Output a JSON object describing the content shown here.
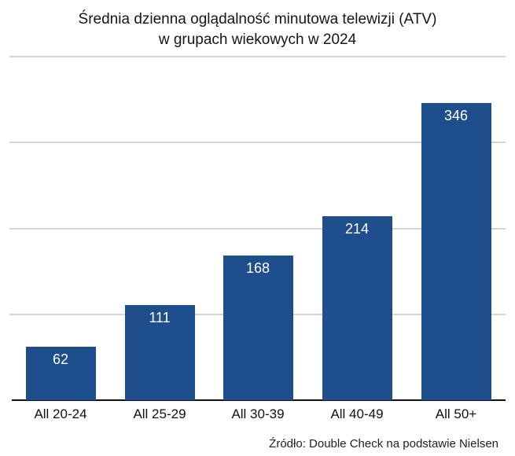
{
  "title": {
    "line1": "Średnia dzienna oglądalność minutowa telewizji (ATV)",
    "line2": "w grupach wiekowych w 2024"
  },
  "source": "Źródło: Double Check na podstawie Nielsen",
  "colors": {
    "bar": "#1f4e8c",
    "grid": "#d4d4d4",
    "axis": "#111111",
    "label": "#ffffff"
  },
  "chart_data": {
    "type": "bar",
    "title": "Średnia dzienna oglądalność minutowa telewizji (ATV) w grupach wiekowych w 2024",
    "categories": [
      "All 20-24",
      "All 25-29",
      "All 30-39",
      "All 40-49",
      "All 50+"
    ],
    "values": [
      62,
      111,
      168,
      214,
      346
    ],
    "xlabel": "",
    "ylabel": "",
    "ylim": [
      0,
      400
    ],
    "gridlines": [
      100,
      200,
      300,
      400
    ],
    "grid": true,
    "data_labels": true,
    "legend": "none",
    "annotation": "Źródło: Double Check na podstawie Nielsen"
  }
}
